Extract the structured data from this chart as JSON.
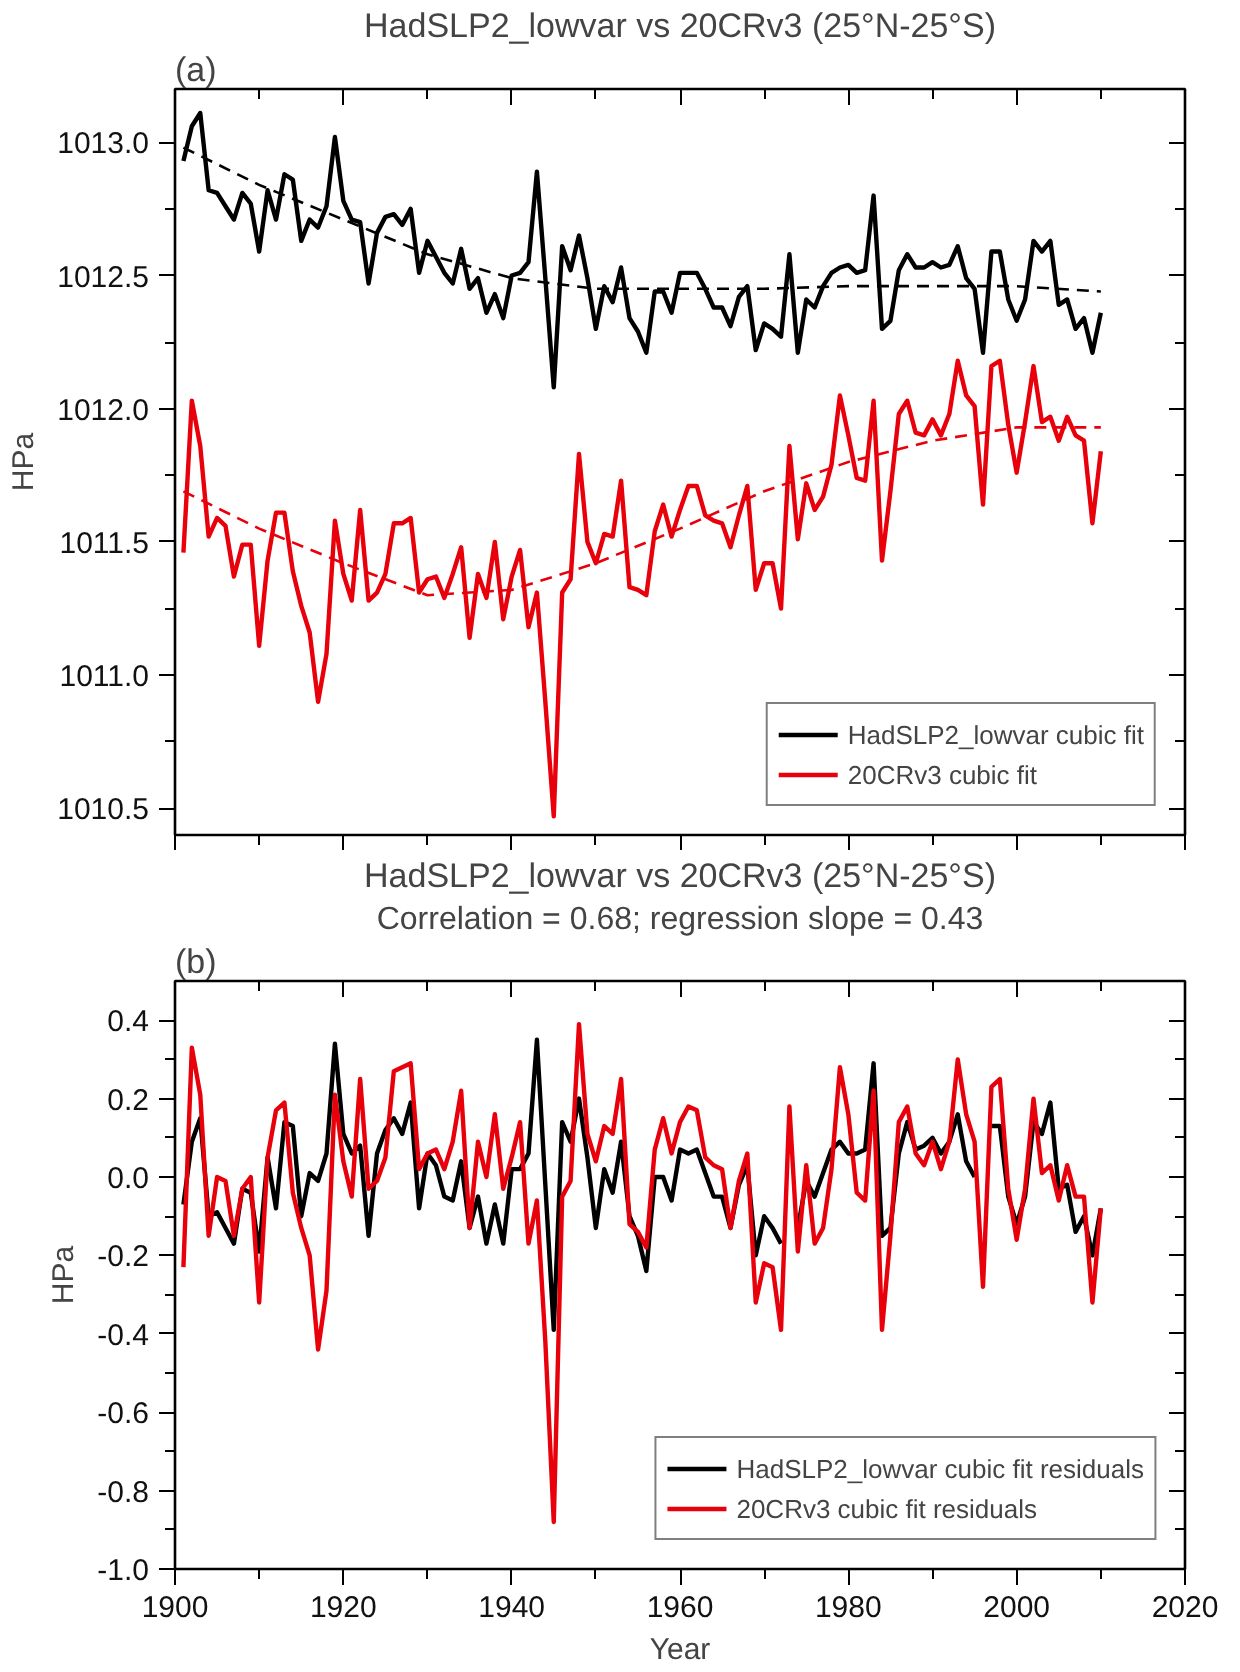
{
  "chart_data": [
    {
      "type": "line",
      "title": "HadSLP2_lowvar vs 20CRv3 (25°N-25°S)",
      "annotations": [
        "(a)"
      ],
      "ylabel": "HPa",
      "x": [
        1901,
        1902,
        1903,
        1904,
        1905,
        1906,
        1907,
        1908,
        1909,
        1910,
        1911,
        1912,
        1913,
        1914,
        1915,
        1916,
        1917,
        1918,
        1919,
        1920,
        1921,
        1922,
        1923,
        1924,
        1925,
        1926,
        1927,
        1928,
        1929,
        1930,
        1931,
        1932,
        1933,
        1934,
        1935,
        1936,
        1937,
        1938,
        1939,
        1940,
        1941,
        1942,
        1943,
        1944,
        1945,
        1946,
        1947,
        1948,
        1949,
        1950,
        1951,
        1952,
        1953,
        1954,
        1955,
        1956,
        1957,
        1958,
        1959,
        1960,
        1961,
        1962,
        1963,
        1964,
        1965,
        1966,
        1967,
        1968,
        1969,
        1970,
        1971,
        1972,
        1973,
        1974,
        1975,
        1976,
        1977,
        1978,
        1979,
        1980,
        1981,
        1982,
        1983,
        1984,
        1985,
        1986,
        1987,
        1988,
        1989,
        1990,
        1991,
        1992,
        1993,
        1994,
        1995,
        1996,
        1997,
        1998,
        1999,
        2000,
        2001,
        2002,
        2003,
        2004,
        2005,
        2006,
        2007,
        2008,
        2009,
        2010
      ],
      "xlim": [
        1900,
        2020
      ],
      "xticks": [
        1900,
        1920,
        1940,
        1960,
        1980,
        2000,
        2020
      ],
      "ylim": [
        1010.4,
        1013.2
      ],
      "yticks": [
        {
          "value": 1010.5,
          "label": "1010.5"
        },
        {
          "value": 1011,
          "label": "1011.0"
        },
        {
          "value": 1011.5,
          "label": "1011.5"
        },
        {
          "value": 1012,
          "label": "1012.0"
        },
        {
          "value": 1012.5,
          "label": "1012.5"
        },
        {
          "value": 1013,
          "label": "1013.0"
        }
      ],
      "tick_labels": "y",
      "legend": "bottom right",
      "line_style": "solid",
      "series": [
        {
          "name": "HadSLP2_lowvar cubic fit",
          "color": "#000000",
          "values": [
            1012.93,
            1013.06,
            1013.11,
            1012.82,
            1012.81,
            1012.76,
            1012.71,
            1012.81,
            1012.77,
            1012.59,
            1012.82,
            1012.71,
            1012.88,
            1012.86,
            1012.63,
            1012.71,
            1012.68,
            1012.76,
            1013.02,
            1012.78,
            1012.71,
            1012.7,
            1012.47,
            1012.66,
            1012.72,
            1012.73,
            1012.69,
            1012.75,
            1012.51,
            1012.63,
            1012.57,
            1012.51,
            1012.47,
            1012.6,
            1012.45,
            1012.49,
            1012.36,
            1012.43,
            1012.34,
            1012.5,
            1012.51,
            1012.55,
            1012.89,
            1012.49,
            1012.08,
            1012.61,
            1012.52,
            1012.65,
            1012.49,
            1012.3,
            1012.46,
            1012.4,
            1012.53,
            1012.34,
            1012.29,
            1012.21,
            1012.44,
            1012.44,
            1012.36,
            1012.51,
            1012.51,
            1012.51,
            1012.45,
            1012.38,
            1012.38,
            1012.31,
            1012.42,
            1012.46,
            1012.22,
            1012.32,
            1012.3,
            1012.27,
            1012.58,
            1012.21,
            1012.41,
            1012.38,
            1012.46,
            1012.51,
            1012.53,
            1012.54,
            1012.51,
            1012.52,
            1012.8,
            1012.3,
            1012.33,
            1012.52,
            1012.58,
            1012.53,
            1012.53,
            1012.55,
            1012.53,
            1012.54,
            1012.61,
            1012.49,
            1012.45,
            1012.21,
            1012.59,
            1012.59,
            1012.41,
            1012.33,
            1012.41,
            1012.63,
            1012.59,
            1012.63,
            1012.39,
            1012.41,
            1012.3,
            1012.34,
            1012.21,
            1012.36
          ]
        },
        {
          "name": "20CRv3 cubic fit",
          "color": "#e8000b",
          "values": [
            1011.46,
            1012.03,
            1011.86,
            1011.52,
            1011.59,
            1011.56,
            1011.37,
            1011.49,
            1011.49,
            1011.11,
            1011.43,
            1011.61,
            1011.61,
            1011.39,
            1011.26,
            1011.16,
            1010.9,
            1011.08,
            1011.58,
            1011.38,
            1011.28,
            1011.62,
            1011.28,
            1011.31,
            1011.38,
            1011.57,
            1011.57,
            1011.59,
            1011.31,
            1011.36,
            1011.37,
            1011.29,
            1011.38,
            1011.48,
            1011.14,
            1011.38,
            1011.29,
            1011.5,
            1011.21,
            1011.37,
            1011.47,
            1011.18,
            1011.31,
            1010.9,
            1010.47,
            1011.31,
            1011.36,
            1011.83,
            1011.5,
            1011.42,
            1011.53,
            1011.52,
            1011.73,
            1011.33,
            1011.32,
            1011.3,
            1011.54,
            1011.64,
            1011.52,
            1011.62,
            1011.71,
            1011.71,
            1011.6,
            1011.58,
            1011.57,
            1011.48,
            1011.6,
            1011.71,
            1011.32,
            1011.42,
            1011.42,
            1011.25,
            1011.86,
            1011.51,
            1011.72,
            1011.62,
            1011.67,
            1011.79,
            1012.05,
            1011.9,
            1011.74,
            1011.73,
            1012.03,
            1011.43,
            1011.69,
            1011.98,
            1012.03,
            1011.91,
            1011.9,
            1011.96,
            1011.9,
            1011.98,
            1012.18,
            1012.05,
            1012.01,
            1011.64,
            1012.16,
            1012.18,
            1011.94,
            1011.76,
            1011.95,
            1012.16,
            1011.95,
            1011.97,
            1011.88,
            1011.97,
            1011.9,
            1011.88,
            1011.57,
            1011.84
          ]
        },
        {
          "color": "#000000",
          "line_style": "dashed",
          "x": [
            1901,
            1910,
            1920,
            1930,
            1940,
            1950,
            1960,
            1970,
            1980,
            1990,
            2000,
            2010
          ],
          "values": [
            1012.98,
            1012.84,
            1012.71,
            1012.58,
            1012.49,
            1012.45,
            1012.45,
            1012.45,
            1012.46,
            1012.46,
            1012.46,
            1012.44
          ]
        },
        {
          "color": "#e8000b",
          "line_style": "dashed",
          "x": [
            1901,
            1910,
            1920,
            1930,
            1940,
            1950,
            1960,
            1970,
            1980,
            1990,
            2000,
            2010
          ],
          "values": [
            1011.69,
            1011.55,
            1011.42,
            1011.3,
            1011.32,
            1011.42,
            1011.55,
            1011.69,
            1011.8,
            1011.88,
            1011.93,
            1011.93
          ]
        }
      ]
    },
    {
      "type": "line",
      "title": "HadSLP2_lowvar vs 20CRv3 (25°N-25°S)",
      "subtitle": "Correlation = 0.68; regression slope = 0.43",
      "annotations": [
        "(b)"
      ],
      "xlabel": "Year",
      "ylabel": "HPa",
      "x": [
        1901,
        1902,
        1903,
        1904,
        1905,
        1906,
        1907,
        1908,
        1909,
        1910,
        1911,
        1912,
        1913,
        1914,
        1915,
        1916,
        1917,
        1918,
        1919,
        1920,
        1921,
        1922,
        1923,
        1924,
        1925,
        1926,
        1927,
        1928,
        1929,
        1930,
        1931,
        1932,
        1933,
        1934,
        1935,
        1936,
        1937,
        1938,
        1939,
        1940,
        1941,
        1942,
        1943,
        1944,
        1945,
        1946,
        1947,
        1948,
        1949,
        1950,
        1951,
        1952,
        1953,
        1954,
        1955,
        1956,
        1957,
        1958,
        1959,
        1960,
        1961,
        1962,
        1963,
        1964,
        1965,
        1966,
        1967,
        1968,
        1969,
        1970,
        1971,
        1972,
        1973,
        1974,
        1975,
        1976,
        1977,
        1978,
        1979,
        1980,
        1981,
        1982,
        1983,
        1984,
        1985,
        1986,
        1987,
        1988,
        1989,
        1990,
        1991,
        1992,
        1993,
        1994,
        1995,
        1996,
        1997,
        1998,
        1999,
        2000,
        2001,
        2002,
        2003,
        2004,
        2005,
        2006,
        2007,
        2008,
        2009,
        2010
      ],
      "xlim": [
        1900,
        2020
      ],
      "xticks": [
        1900,
        1920,
        1940,
        1960,
        1980,
        2000,
        2020
      ],
      "ylim": [
        -1.0,
        0.5
      ],
      "yticks": [
        {
          "value": -1.0,
          "label": "-1.0"
        },
        {
          "value": -0.8,
          "label": "-0.8"
        },
        {
          "value": -0.6,
          "label": "-0.6"
        },
        {
          "value": -0.4,
          "label": "-0.4"
        },
        {
          "value": -0.2,
          "label": "-0.2"
        },
        {
          "value": 0,
          "label": "0.0"
        },
        {
          "value": 0.2,
          "label": "0.2"
        },
        {
          "value": 0.4,
          "label": "0.4"
        }
      ],
      "legend": "bottom right",
      "line_style": "solid",
      "series": [
        {
          "name": "HadSLP2_lowvar cubic fit residuals",
          "color": "#000000",
          "values": [
            -0.07,
            0.09,
            0.15,
            -0.1,
            -0.09,
            -0.13,
            -0.17,
            -0.03,
            -0.04,
            -0.19,
            0.05,
            -0.08,
            0.14,
            0.13,
            -0.1,
            0.01,
            -0.01,
            0.06,
            0.34,
            0.11,
            0.06,
            0.08,
            -0.15,
            0.06,
            0.12,
            0.15,
            0.11,
            0.19,
            -0.08,
            0.06,
            0.03,
            -0.05,
            -0.06,
            0.04,
            -0.13,
            -0.05,
            -0.17,
            -0.07,
            -0.17,
            0.02,
            0.02,
            0.06,
            0.35,
            -0.02,
            -0.39,
            0.14,
            0.09,
            0.2,
            0.05,
            -0.13,
            0.02,
            -0.04,
            0.09,
            -0.1,
            -0.15,
            -0.24,
            0.0,
            0.0,
            -0.06,
            0.07,
            0.06,
            0.07,
            0.01,
            -0.05,
            -0.05,
            -0.13,
            -0.02,
            0.03,
            -0.2,
            -0.1,
            -0.13,
            -0.17,
            null,
            -0.13,
            -0.01,
            -0.05,
            0.01,
            0.07,
            0.09,
            0.06,
            0.06,
            0.07,
            0.29,
            -0.15,
            -0.13,
            0.06,
            0.14,
            0.07,
            0.08,
            0.1,
            0.06,
            0.09,
            0.16,
            0.04,
            0.0,
            null,
            0.13,
            0.13,
            -0.05,
            -0.12,
            -0.05,
            0.14,
            0.11,
            0.19,
            -0.03,
            -0.02,
            -0.14,
            -0.1,
            -0.2,
            -0.08
          ]
        },
        {
          "name": "20CRv3 cubic fit residuals",
          "color": "#e8000b",
          "values": [
            -0.23,
            0.33,
            0.21,
            -0.15,
            0.0,
            -0.01,
            -0.15,
            -0.03,
            0.0,
            -0.32,
            0.05,
            0.17,
            0.19,
            -0.04,
            -0.13,
            -0.2,
            -0.44,
            -0.29,
            0.21,
            0.04,
            -0.05,
            0.25,
            -0.03,
            -0.01,
            0.05,
            0.27,
            0.28,
            0.29,
            0.02,
            0.06,
            0.07,
            0.02,
            0.09,
            0.22,
            -0.13,
            0.09,
            0.0,
            0.16,
            -0.03,
            0.05,
            0.14,
            -0.17,
            -0.06,
            -0.42,
            -0.88,
            -0.05,
            -0.01,
            0.39,
            0.11,
            0.04,
            0.13,
            0.11,
            0.25,
            -0.12,
            -0.14,
            -0.18,
            0.07,
            0.15,
            0.06,
            0.14,
            0.18,
            0.17,
            0.05,
            0.03,
            0.02,
            -0.13,
            -0.01,
            0.06,
            -0.32,
            -0.22,
            -0.23,
            -0.39,
            0.18,
            -0.19,
            0.03,
            -0.17,
            -0.13,
            0.02,
            0.28,
            0.16,
            -0.04,
            -0.06,
            0.22,
            -0.39,
            -0.15,
            0.14,
            0.18,
            0.06,
            0.03,
            0.09,
            0.02,
            0.09,
            0.3,
            0.16,
            0.09,
            -0.28,
            0.23,
            0.25,
            -0.03,
            -0.16,
            -0.03,
            0.2,
            0.01,
            0.03,
            -0.06,
            0.03,
            -0.05,
            -0.05,
            -0.32,
            -0.08
          ]
        }
      ]
    }
  ]
}
